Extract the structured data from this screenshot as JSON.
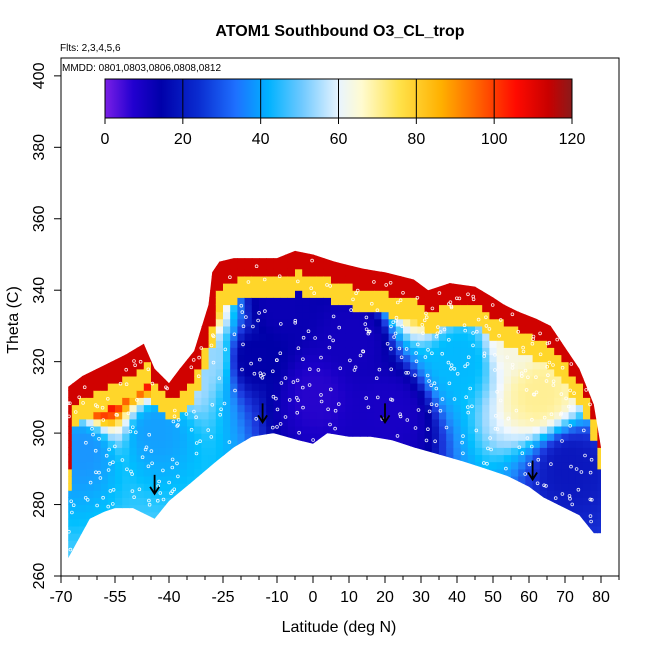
{
  "chart_data": {
    "type": "heatmap",
    "title": "ATOM1 Southbound O3_CL_trop",
    "annotations": {
      "flights": "Flts: 2,3,4,5,6",
      "dates": "MMDD: 0801,0803,0806,0808,0812"
    },
    "xlabel": "Latitude (deg N)",
    "ylabel": "Theta (C)",
    "xlim": [
      -70,
      85
    ],
    "ylim": [
      260,
      405
    ],
    "x_ticks": [
      -70,
      -55,
      -40,
      -25,
      -10,
      0,
      10,
      20,
      30,
      40,
      50,
      60,
      70,
      80
    ],
    "x_tick_labels": [
      "-70",
      "-55",
      "-40",
      "-25",
      "-10",
      "0",
      "10",
      "20",
      "30",
      "40",
      "50",
      "60",
      "70",
      "80"
    ],
    "x_minor_ticks": [
      -65,
      -60,
      -50,
      -45,
      -35,
      -30,
      -20,
      -15,
      -5,
      5,
      15,
      25,
      35,
      45,
      55,
      65,
      75,
      85
    ],
    "y_ticks": [
      260,
      280,
      300,
      320,
      340,
      360,
      380,
      400
    ],
    "y_tick_labels": [
      "260",
      "280",
      "300",
      "320",
      "340",
      "360",
      "380",
      "400"
    ],
    "colorbar": {
      "range": [
        0,
        120
      ],
      "ticks": [
        0,
        20,
        40,
        60,
        80,
        100,
        120
      ],
      "tick_labels": [
        "0",
        "20",
        "40",
        "60",
        "80",
        "100",
        "120"
      ],
      "colors": [
        "#7a1fe6",
        "#1a00c8",
        "#0000a8",
        "#1c3ce0",
        "#1e90ff",
        "#00bfff",
        "#9ad8ff",
        "#f2f8ff",
        "#fff3a6",
        "#ffd21a",
        "#ff8c00",
        "#ff1a00",
        "#cc0000",
        "#8b1a1a"
      ]
    },
    "data_extent": {
      "bottom_boundary": [
        [
          -68,
          265
        ],
        [
          -62,
          276
        ],
        [
          -58,
          278
        ],
        [
          -55,
          279
        ],
        [
          -50,
          279
        ],
        [
          -44,
          276
        ],
        [
          -40,
          281
        ],
        [
          -34,
          286
        ],
        [
          -27,
          292
        ],
        [
          -22,
          296
        ],
        [
          -17,
          299
        ],
        [
          -11,
          300
        ],
        [
          -4,
          298
        ],
        [
          0,
          297
        ],
        [
          4,
          300
        ],
        [
          10,
          299
        ],
        [
          16,
          299
        ],
        [
          22,
          298
        ],
        [
          28,
          296
        ],
        [
          35,
          294
        ],
        [
          42,
          292
        ],
        [
          48,
          290
        ],
        [
          54,
          288
        ],
        [
          60,
          285
        ],
        [
          64,
          282
        ],
        [
          70,
          279
        ],
        [
          74,
          277
        ],
        [
          78,
          272
        ],
        [
          80,
          272
        ],
        [
          80,
          298
        ]
      ],
      "top_boundary": [
        [
          -68,
          300
        ],
        [
          -68,
          313
        ],
        [
          -64,
          316
        ],
        [
          -58,
          319
        ],
        [
          -52,
          322
        ],
        [
          -47,
          325
        ],
        [
          -44,
          318
        ],
        [
          -40,
          314
        ],
        [
          -37,
          318
        ],
        [
          -33,
          323
        ],
        [
          -29,
          336
        ],
        [
          -28,
          345
        ],
        [
          -26,
          348
        ],
        [
          -22,
          349
        ],
        [
          -16,
          349
        ],
        [
          -10,
          349
        ],
        [
          -5,
          351
        ],
        [
          0,
          350
        ],
        [
          6,
          348
        ],
        [
          10,
          347
        ],
        [
          14,
          346
        ],
        [
          20,
          345
        ],
        [
          24,
          344
        ],
        [
          28,
          343
        ],
        [
          32,
          340
        ],
        [
          38,
          342
        ],
        [
          45,
          341
        ],
        [
          50,
          338
        ],
        [
          53,
          336
        ],
        [
          57,
          334
        ],
        [
          62,
          332
        ],
        [
          66,
          330
        ],
        [
          70,
          324
        ],
        [
          74,
          318
        ],
        [
          78,
          308
        ],
        [
          80,
          296
        ]
      ],
      "field_samples": [
        {
          "lat": -65,
          "theta": 295,
          "value": 38
        },
        {
          "lat": -60,
          "theta": 310,
          "value": 105
        },
        {
          "lat": -50,
          "theta": 318,
          "value": 110
        },
        {
          "lat": -45,
          "theta": 300,
          "value": 40
        },
        {
          "lat": -36,
          "theta": 330,
          "value": 112
        },
        {
          "lat": -30,
          "theta": 320,
          "value": 55
        },
        {
          "lat": -18,
          "theta": 320,
          "value": 18
        },
        {
          "lat": -10,
          "theta": 335,
          "value": 15
        },
        {
          "lat": 0,
          "theta": 310,
          "value": 8
        },
        {
          "lat": 10,
          "theta": 325,
          "value": 12
        },
        {
          "lat": 20,
          "theta": 305,
          "value": 10
        },
        {
          "lat": 30,
          "theta": 340,
          "value": 90
        },
        {
          "lat": 40,
          "theta": 320,
          "value": 45
        },
        {
          "lat": 55,
          "theta": 325,
          "value": 68
        },
        {
          "lat": 62,
          "theta": 310,
          "value": 75
        },
        {
          "lat": 70,
          "theta": 290,
          "value": 22
        }
      ]
    },
    "arrows": [
      {
        "lat": -44,
        "theta": 283
      },
      {
        "lat": -14,
        "theta": 303
      },
      {
        "lat": 20,
        "theta": 303
      },
      {
        "lat": 61,
        "theta": 287
      }
    ]
  }
}
